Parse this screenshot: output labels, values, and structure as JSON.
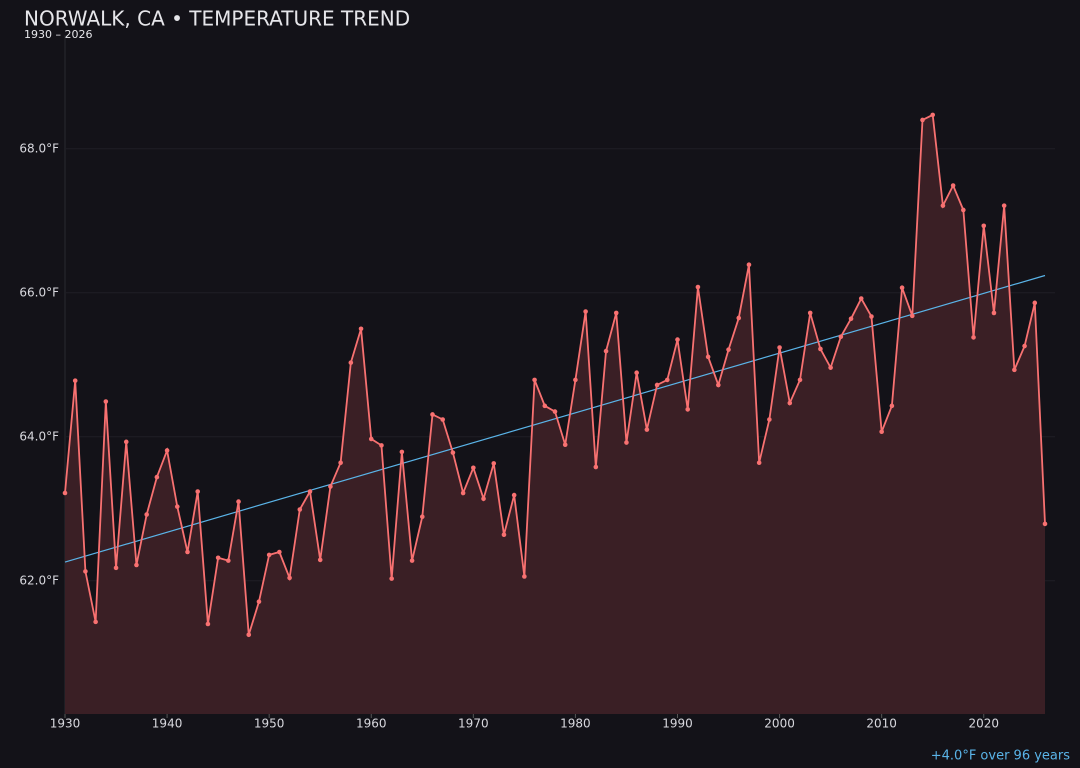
{
  "chart_data": {
    "type": "line",
    "title": "NORWALK, CA • TEMPERATURE TREND",
    "subtitle": "1930 – 2026",
    "annotation": "+4.0°F over 96 years",
    "color": "#f87171",
    "area_color": "#3a1f25",
    "grid": true,
    "x": [
      1930,
      1931,
      1932,
      1933,
      1934,
      1935,
      1936,
      1937,
      1938,
      1939,
      1940,
      1941,
      1942,
      1943,
      1944,
      1945,
      1946,
      1947,
      1948,
      1949,
      1950,
      1951,
      1952,
      1953,
      1954,
      1955,
      1956,
      1957,
      1958,
      1959,
      1960,
      1961,
      1962,
      1963,
      1964,
      1965,
      1966,
      1967,
      1968,
      1969,
      1970,
      1971,
      1972,
      1973,
      1974,
      1975,
      1976,
      1977,
      1978,
      1979,
      1980,
      1981,
      1982,
      1983,
      1984,
      1985,
      1986,
      1987,
      1988,
      1989,
      1990,
      1991,
      1992,
      1993,
      1994,
      1995,
      1996,
      1997,
      1998,
      1999,
      2000,
      2001,
      2002,
      2003,
      2004,
      2005,
      2006,
      2007,
      2008,
      2009,
      2010,
      2011,
      2012,
      2013,
      2014,
      2015,
      2016,
      2017,
      2018,
      2019,
      2020,
      2021,
      2022,
      2023,
      2024,
      2025,
      2026
    ],
    "values": [
      63.22,
      64.78,
      62.13,
      61.43,
      64.49,
      62.18,
      63.93,
      62.22,
      62.92,
      63.44,
      63.81,
      63.03,
      62.4,
      63.24,
      61.4,
      62.32,
      62.28,
      63.1,
      61.25,
      61.71,
      62.36,
      62.4,
      62.04,
      62.99,
      63.24,
      62.29,
      63.31,
      63.64,
      65.03,
      65.5,
      63.97,
      63.88,
      62.03,
      63.79,
      62.28,
      62.89,
      64.31,
      64.24,
      63.78,
      63.22,
      63.57,
      63.14,
      63.63,
      62.64,
      63.19,
      62.06,
      64.79,
      64.43,
      64.35,
      63.89,
      64.79,
      65.74,
      63.58,
      65.19,
      65.72,
      63.92,
      64.89,
      64.1,
      64.72,
      64.79,
      65.35,
      64.38,
      66.08,
      65.11,
      64.72,
      65.21,
      65.65,
      66.39,
      63.64,
      64.24,
      65.24,
      64.47,
      64.79,
      65.72,
      65.22,
      64.96,
      65.39,
      65.64,
      65.92,
      65.67,
      64.07,
      64.43,
      66.07,
      65.68,
      68.4,
      68.47,
      67.21,
      67.49,
      67.15,
      65.38,
      66.93,
      65.72,
      67.21,
      64.93,
      65.26,
      65.86,
      62.79
    ],
    "trend": {
      "x": [
        1930,
        2026
      ],
      "values": [
        62.26,
        66.24
      ],
      "color": "#5ab4e8"
    },
    "xlim": [
      1930,
      2026
    ],
    "xticks": [
      1930,
      1940,
      1950,
      1960,
      1970,
      1980,
      1990,
      2000,
      2010,
      2020
    ],
    "ylim": [
      60.15,
      69.58
    ],
    "yticks": [
      {
        "value": 62,
        "label": "62.0°F"
      },
      {
        "value": 64,
        "label": "64.0°F"
      },
      {
        "value": 66,
        "label": "66.0°F"
      },
      {
        "value": 68,
        "label": "68.0°F"
      }
    ]
  }
}
